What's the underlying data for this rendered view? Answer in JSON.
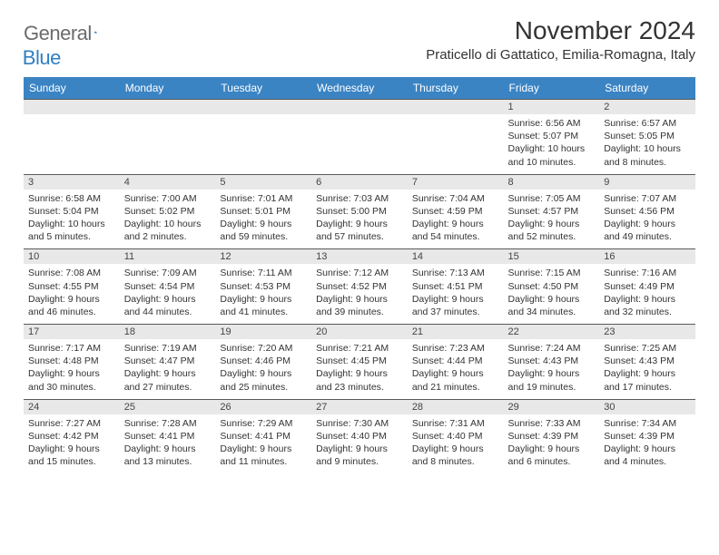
{
  "logo": {
    "general": "General",
    "blue": "Blue"
  },
  "title": "November 2024",
  "location": "Praticello di Gattatico, Emilia-Romagna, Italy",
  "colors": {
    "headerBg": "#3b84c4",
    "headerText": "#ffffff",
    "numRowBg": "#e8e8e8",
    "numRowBorder": "#5a5a5a",
    "bodyText": "#333333",
    "logoGray": "#6b6b6b",
    "logoBlue": "#2f7fc2"
  },
  "dow": [
    "Sunday",
    "Monday",
    "Tuesday",
    "Wednesday",
    "Thursday",
    "Friday",
    "Saturday"
  ],
  "weeks": [
    [
      {
        "n": "",
        "sr": "",
        "ss": "",
        "dl": ""
      },
      {
        "n": "",
        "sr": "",
        "ss": "",
        "dl": ""
      },
      {
        "n": "",
        "sr": "",
        "ss": "",
        "dl": ""
      },
      {
        "n": "",
        "sr": "",
        "ss": "",
        "dl": ""
      },
      {
        "n": "",
        "sr": "",
        "ss": "",
        "dl": ""
      },
      {
        "n": "1",
        "sr": "Sunrise: 6:56 AM",
        "ss": "Sunset: 5:07 PM",
        "dl": "Daylight: 10 hours and 10 minutes."
      },
      {
        "n": "2",
        "sr": "Sunrise: 6:57 AM",
        "ss": "Sunset: 5:05 PM",
        "dl": "Daylight: 10 hours and 8 minutes."
      }
    ],
    [
      {
        "n": "3",
        "sr": "Sunrise: 6:58 AM",
        "ss": "Sunset: 5:04 PM",
        "dl": "Daylight: 10 hours and 5 minutes."
      },
      {
        "n": "4",
        "sr": "Sunrise: 7:00 AM",
        "ss": "Sunset: 5:02 PM",
        "dl": "Daylight: 10 hours and 2 minutes."
      },
      {
        "n": "5",
        "sr": "Sunrise: 7:01 AM",
        "ss": "Sunset: 5:01 PM",
        "dl": "Daylight: 9 hours and 59 minutes."
      },
      {
        "n": "6",
        "sr": "Sunrise: 7:03 AM",
        "ss": "Sunset: 5:00 PM",
        "dl": "Daylight: 9 hours and 57 minutes."
      },
      {
        "n": "7",
        "sr": "Sunrise: 7:04 AM",
        "ss": "Sunset: 4:59 PM",
        "dl": "Daylight: 9 hours and 54 minutes."
      },
      {
        "n": "8",
        "sr": "Sunrise: 7:05 AM",
        "ss": "Sunset: 4:57 PM",
        "dl": "Daylight: 9 hours and 52 minutes."
      },
      {
        "n": "9",
        "sr": "Sunrise: 7:07 AM",
        "ss": "Sunset: 4:56 PM",
        "dl": "Daylight: 9 hours and 49 minutes."
      }
    ],
    [
      {
        "n": "10",
        "sr": "Sunrise: 7:08 AM",
        "ss": "Sunset: 4:55 PM",
        "dl": "Daylight: 9 hours and 46 minutes."
      },
      {
        "n": "11",
        "sr": "Sunrise: 7:09 AM",
        "ss": "Sunset: 4:54 PM",
        "dl": "Daylight: 9 hours and 44 minutes."
      },
      {
        "n": "12",
        "sr": "Sunrise: 7:11 AM",
        "ss": "Sunset: 4:53 PM",
        "dl": "Daylight: 9 hours and 41 minutes."
      },
      {
        "n": "13",
        "sr": "Sunrise: 7:12 AM",
        "ss": "Sunset: 4:52 PM",
        "dl": "Daylight: 9 hours and 39 minutes."
      },
      {
        "n": "14",
        "sr": "Sunrise: 7:13 AM",
        "ss": "Sunset: 4:51 PM",
        "dl": "Daylight: 9 hours and 37 minutes."
      },
      {
        "n": "15",
        "sr": "Sunrise: 7:15 AM",
        "ss": "Sunset: 4:50 PM",
        "dl": "Daylight: 9 hours and 34 minutes."
      },
      {
        "n": "16",
        "sr": "Sunrise: 7:16 AM",
        "ss": "Sunset: 4:49 PM",
        "dl": "Daylight: 9 hours and 32 minutes."
      }
    ],
    [
      {
        "n": "17",
        "sr": "Sunrise: 7:17 AM",
        "ss": "Sunset: 4:48 PM",
        "dl": "Daylight: 9 hours and 30 minutes."
      },
      {
        "n": "18",
        "sr": "Sunrise: 7:19 AM",
        "ss": "Sunset: 4:47 PM",
        "dl": "Daylight: 9 hours and 27 minutes."
      },
      {
        "n": "19",
        "sr": "Sunrise: 7:20 AM",
        "ss": "Sunset: 4:46 PM",
        "dl": "Daylight: 9 hours and 25 minutes."
      },
      {
        "n": "20",
        "sr": "Sunrise: 7:21 AM",
        "ss": "Sunset: 4:45 PM",
        "dl": "Daylight: 9 hours and 23 minutes."
      },
      {
        "n": "21",
        "sr": "Sunrise: 7:23 AM",
        "ss": "Sunset: 4:44 PM",
        "dl": "Daylight: 9 hours and 21 minutes."
      },
      {
        "n": "22",
        "sr": "Sunrise: 7:24 AM",
        "ss": "Sunset: 4:43 PM",
        "dl": "Daylight: 9 hours and 19 minutes."
      },
      {
        "n": "23",
        "sr": "Sunrise: 7:25 AM",
        "ss": "Sunset: 4:43 PM",
        "dl": "Daylight: 9 hours and 17 minutes."
      }
    ],
    [
      {
        "n": "24",
        "sr": "Sunrise: 7:27 AM",
        "ss": "Sunset: 4:42 PM",
        "dl": "Daylight: 9 hours and 15 minutes."
      },
      {
        "n": "25",
        "sr": "Sunrise: 7:28 AM",
        "ss": "Sunset: 4:41 PM",
        "dl": "Daylight: 9 hours and 13 minutes."
      },
      {
        "n": "26",
        "sr": "Sunrise: 7:29 AM",
        "ss": "Sunset: 4:41 PM",
        "dl": "Daylight: 9 hours and 11 minutes."
      },
      {
        "n": "27",
        "sr": "Sunrise: 7:30 AM",
        "ss": "Sunset: 4:40 PM",
        "dl": "Daylight: 9 hours and 9 minutes."
      },
      {
        "n": "28",
        "sr": "Sunrise: 7:31 AM",
        "ss": "Sunset: 4:40 PM",
        "dl": "Daylight: 9 hours and 8 minutes."
      },
      {
        "n": "29",
        "sr": "Sunrise: 7:33 AM",
        "ss": "Sunset: 4:39 PM",
        "dl": "Daylight: 9 hours and 6 minutes."
      },
      {
        "n": "30",
        "sr": "Sunrise: 7:34 AM",
        "ss": "Sunset: 4:39 PM",
        "dl": "Daylight: 9 hours and 4 minutes."
      }
    ]
  ]
}
